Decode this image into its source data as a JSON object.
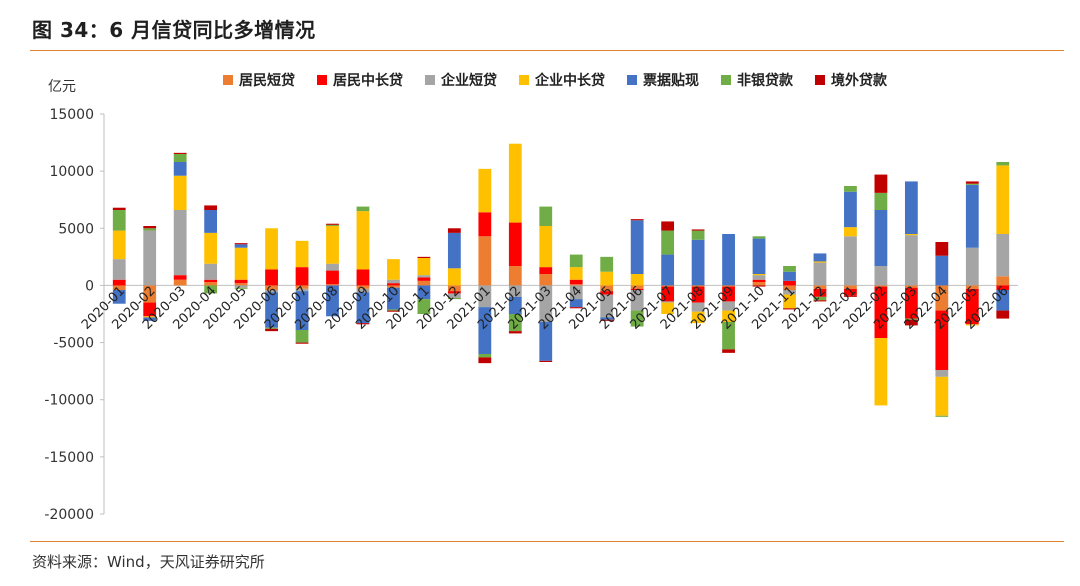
{
  "header": {
    "title": "图 34：6 月信贷同比多增情况"
  },
  "footer": {
    "source": "资料来源：Wind，天风证券研究所"
  },
  "chart_data": {
    "type": "bar",
    "stacked": true,
    "unit": "亿元",
    "ylim": [
      -20000,
      15000
    ],
    "yticks": [
      15000,
      10000,
      5000,
      0,
      -5000,
      -10000,
      -15000,
      -20000
    ],
    "grid": false,
    "legend_position": "top",
    "categories": [
      "2020-01",
      "2020-02",
      "2020-03",
      "2020-04",
      "2020-05",
      "2020-06",
      "2020-07",
      "2020-08",
      "2020-09",
      "2020-10",
      "2020-11",
      "2020-12",
      "2021-01",
      "2021-02",
      "2021-03",
      "2021-04",
      "2021-05",
      "2021-06",
      "2021-07",
      "2021-08",
      "2021-09",
      "2021-10",
      "2021-11",
      "2021-12",
      "2022-01",
      "2022-02",
      "2022-03",
      "2022-04",
      "2022-05",
      "2022-06"
    ],
    "series": [
      {
        "name": "居民短贷",
        "color": "#ED7D31",
        "values": [
          -400,
          -1500,
          500,
          300,
          200,
          -400,
          -300,
          100,
          -300,
          -200,
          400,
          -500,
          4300,
          1700,
          1000,
          100,
          -500,
          -300,
          -100,
          -100,
          -100,
          300,
          -400,
          -300,
          -300,
          -100,
          -200,
          -2200,
          -300,
          800
        ]
      },
      {
        "name": "居民中长贷",
        "color": "#FF0000",
        "values": [
          500,
          -1200,
          400,
          200,
          300,
          1400,
          1600,
          1200,
          1400,
          200,
          300,
          -200,
          2100,
          3800,
          600,
          400,
          -300,
          -100,
          -1300,
          -1400,
          -1300,
          200,
          400,
          -700,
          -600,
          -4500,
          -2700,
          -5200,
          -3100,
          -400
        ]
      },
      {
        "name": "企业短贷",
        "color": "#A5A5A5",
        "values": [
          1800,
          4800,
          5700,
          1400,
          -200,
          -200,
          -200,
          600,
          -300,
          300,
          200,
          -400,
          -1900,
          -1000,
          -3200,
          -1200,
          -2000,
          -1800,
          -100,
          -800,
          -800,
          400,
          -400,
          2000,
          4300,
          1700,
          4400,
          -600,
          3300,
          3700
        ]
      },
      {
        "name": "企业中长贷",
        "color": "#FFC000",
        "values": [
          2500,
          -100,
          3000,
          2700,
          2800,
          3600,
          2300,
          3300,
          5100,
          1800,
          1500,
          1500,
          3800,
          6900,
          3600,
          1100,
          1200,
          1000,
          -1000,
          -1000,
          -1000,
          100,
          -1200,
          100,
          800,
          -5900,
          100,
          -3400,
          -100,
          6000
        ]
      },
      {
        "name": "票据贴现",
        "color": "#4472C4",
        "values": [
          -1200,
          -300,
          1200,
          2000,
          300,
          -3100,
          -3400,
          -2700,
          -2700,
          -1900,
          -1200,
          3100,
          -4100,
          -1500,
          -3400,
          -700,
          -200,
          4700,
          2700,
          4000,
          4500,
          3100,
          800,
          700,
          3100,
          4900,
          4600,
          2600,
          5500,
          -1800
        ]
      },
      {
        "name": "非银贷款",
        "color": "#70AD47",
        "values": [
          1800,
          200,
          700,
          -700,
          -100,
          -100,
          -1100,
          100,
          400,
          -100,
          -1300,
          -100,
          -300,
          -1500,
          1700,
          1100,
          1300,
          -1400,
          2100,
          800,
          -2400,
          200,
          500,
          -300,
          500,
          1500,
          -100,
          -100,
          100,
          300
        ]
      },
      {
        "name": "境外贷款",
        "color": "#C00000",
        "values": [
          200,
          200,
          100,
          400,
          100,
          -200,
          -100,
          100,
          -100,
          -100,
          100,
          400,
          -500,
          -200,
          -100,
          -100,
          -100,
          100,
          800,
          100,
          -300,
          -100,
          -100,
          -100,
          -100,
          1600,
          -500,
          1200,
          200,
          -700
        ]
      }
    ]
  }
}
